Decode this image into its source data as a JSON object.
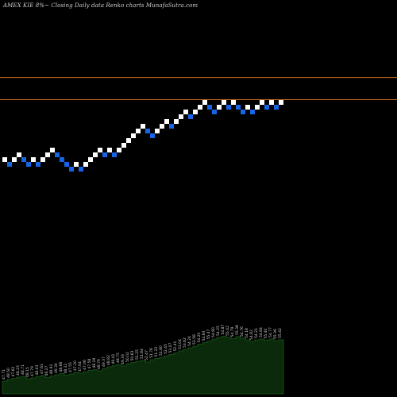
{
  "header": {
    "title": "AMEX  KIE  8%~  Closing Daily data  Renko  charts MunafaSutra.com"
  },
  "colors": {
    "background": "#000000",
    "up_brick": "#ffffff",
    "down_brick": "#1565e6",
    "reference_line": "#c46a1e",
    "volume_fill": "#0b2a0b",
    "volume_stroke": "#1a5a1a",
    "volume_label": "#d0d0d0"
  },
  "chart_data": {
    "type": "renko",
    "title": "AMEX  KIE  8%~  Closing Daily data  Renko  charts MunafaSutra.com",
    "reference_lines": [
      {
        "value": 58.24
      },
      {
        "value": 55.45
      }
    ],
    "bricks": [
      {
        "dir": "up",
        "value": 48.2
      },
      {
        "dir": "down",
        "value": 47.6
      },
      {
        "dir": "up",
        "value": 48.2
      },
      {
        "dir": "up",
        "value": 48.8
      },
      {
        "dir": "down",
        "value": 48.2
      },
      {
        "dir": "down",
        "value": 47.6
      },
      {
        "dir": "up",
        "value": 48.2
      },
      {
        "dir": "down",
        "value": 47.6
      },
      {
        "dir": "up",
        "value": 48.2
      },
      {
        "dir": "up",
        "value": 48.8
      },
      {
        "dir": "up",
        "value": 49.4
      },
      {
        "dir": "down",
        "value": 48.8
      },
      {
        "dir": "down",
        "value": 48.2
      },
      {
        "dir": "down",
        "value": 47.6
      },
      {
        "dir": "down",
        "value": 47.0
      },
      {
        "dir": "up",
        "value": 47.6
      },
      {
        "dir": "down",
        "value": 47.0
      },
      {
        "dir": "up",
        "value": 47.6
      },
      {
        "dir": "up",
        "value": 48.2
      },
      {
        "dir": "up",
        "value": 48.8
      },
      {
        "dir": "up",
        "value": 49.4
      },
      {
        "dir": "down",
        "value": 48.8
      },
      {
        "dir": "up",
        "value": 49.4
      },
      {
        "dir": "down",
        "value": 48.8
      },
      {
        "dir": "up",
        "value": 49.4
      },
      {
        "dir": "up",
        "value": 50.0
      },
      {
        "dir": "up",
        "value": 50.6
      },
      {
        "dir": "up",
        "value": 51.2
      },
      {
        "dir": "up",
        "value": 51.8
      },
      {
        "dir": "up",
        "value": 52.4
      },
      {
        "dir": "down",
        "value": 51.8
      },
      {
        "dir": "down",
        "value": 51.2
      },
      {
        "dir": "up",
        "value": 51.8
      },
      {
        "dir": "up",
        "value": 52.4
      },
      {
        "dir": "up",
        "value": 53.0
      },
      {
        "dir": "down",
        "value": 52.4
      },
      {
        "dir": "up",
        "value": 53.0
      },
      {
        "dir": "up",
        "value": 53.6
      },
      {
        "dir": "up",
        "value": 54.2
      },
      {
        "dir": "down",
        "value": 53.6
      },
      {
        "dir": "up",
        "value": 54.2
      },
      {
        "dir": "up",
        "value": 54.8
      },
      {
        "dir": "up",
        "value": 55.4
      },
      {
        "dir": "down",
        "value": 54.8
      },
      {
        "dir": "down",
        "value": 54.2
      },
      {
        "dir": "up",
        "value": 54.8
      },
      {
        "dir": "up",
        "value": 55.4
      },
      {
        "dir": "down",
        "value": 54.8
      },
      {
        "dir": "up",
        "value": 55.4
      },
      {
        "dir": "down",
        "value": 54.8
      },
      {
        "dir": "down",
        "value": 54.2
      },
      {
        "dir": "up",
        "value": 54.8
      },
      {
        "dir": "down",
        "value": 54.2
      },
      {
        "dir": "up",
        "value": 54.8
      },
      {
        "dir": "up",
        "value": 55.4
      },
      {
        "dir": "down",
        "value": 54.8
      },
      {
        "dir": "up",
        "value": 55.4
      },
      {
        "dir": "down",
        "value": 54.8
      },
      {
        "dir": "up",
        "value": 55.4
      }
    ],
    "volume": [
      3.2,
      3.6,
      3.9,
      4.2,
      4.4,
      3.8,
      4.0,
      4.3,
      4.6,
      4.1,
      4.5,
      4.8,
      5.1,
      4.7,
      5.0,
      5.4,
      5.2,
      5.6,
      5.9,
      6.1,
      5.8,
      6.4,
      6.8,
      7.1,
      7.4,
      7.0,
      7.6,
      7.9,
      8.2,
      8.4,
      8.0,
      8.6,
      8.9,
      9.2,
      9.6,
      9.9,
      10.3,
      10.8,
      11.2,
      11.6,
      12.0,
      12.5,
      12.9,
      13.3,
      13.8,
      14.2,
      14.5,
      14.2,
      13.9,
      14.4,
      14.0,
      13.6,
      13.2,
      13.6,
      13.8,
      13.5,
      13.8,
      13.4,
      13.6
    ],
    "volume_labels": [
      "47.71",
      "48.50",
      "47.62",
      "48.23",
      "48.71",
      "48.15",
      "47.79",
      "48.03",
      "47.61",
      "48.27",
      "48.92",
      "49.30",
      "48.66",
      "48.12",
      "47.55",
      "47.20",
      "47.64",
      "47.06",
      "47.58",
      "48.19",
      "48.79",
      "49.37",
      "48.82",
      "49.41",
      "48.75",
      "49.33",
      "50.02",
      "50.63",
      "51.25",
      "51.84",
      "52.47",
      "51.76",
      "51.22",
      "51.80",
      "52.45",
      "53.07",
      "52.41",
      "53.04",
      "53.62",
      "54.24",
      "53.58",
      "54.20",
      "54.83",
      "55.47",
      "54.80",
      "54.25",
      "54.87",
      "55.42",
      "54.79",
      "55.38",
      "54.76",
      "54.18",
      "54.82",
      "54.21",
      "54.84",
      "55.40",
      "54.77",
      "55.36",
      "55.42"
    ]
  }
}
